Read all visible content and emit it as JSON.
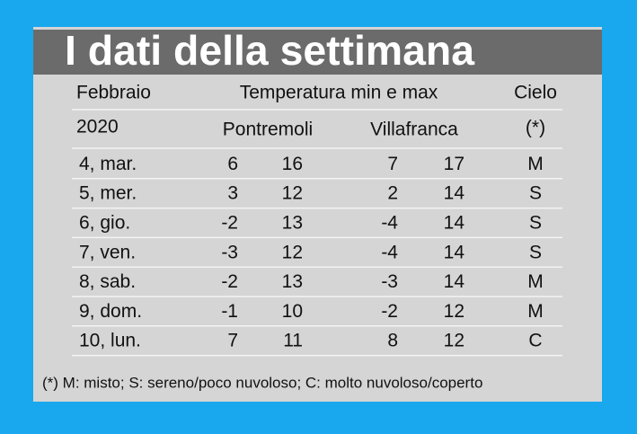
{
  "title": "I dati della settimana",
  "table": {
    "header": {
      "month": "Febbraio",
      "temperature": "Temperatura min e max",
      "sky": "Cielo",
      "year": "2020",
      "town1": "Pontremoli",
      "town2": "Villafranca",
      "sky_note": "(*)"
    },
    "rows": [
      [
        "4, mar.",
        6,
        16,
        7,
        17,
        "M"
      ],
      [
        "5, mer.",
        3,
        12,
        2,
        14,
        "S"
      ],
      [
        "6, gio.",
        -2,
        13,
        -4,
        14,
        "S"
      ],
      [
        "7, ven.",
        -3,
        12,
        -4,
        14,
        "S"
      ],
      [
        "8, sab.",
        -2,
        13,
        -3,
        14,
        "M"
      ],
      [
        "9, dom.",
        -1,
        10,
        -2,
        12,
        "M"
      ],
      [
        "10, lun.",
        7,
        11,
        8,
        12,
        "C"
      ]
    ]
  },
  "footnote": "(*) M: misto; S: sereno/poco nuvoloso; C: molto nuvoloso/coperto"
}
